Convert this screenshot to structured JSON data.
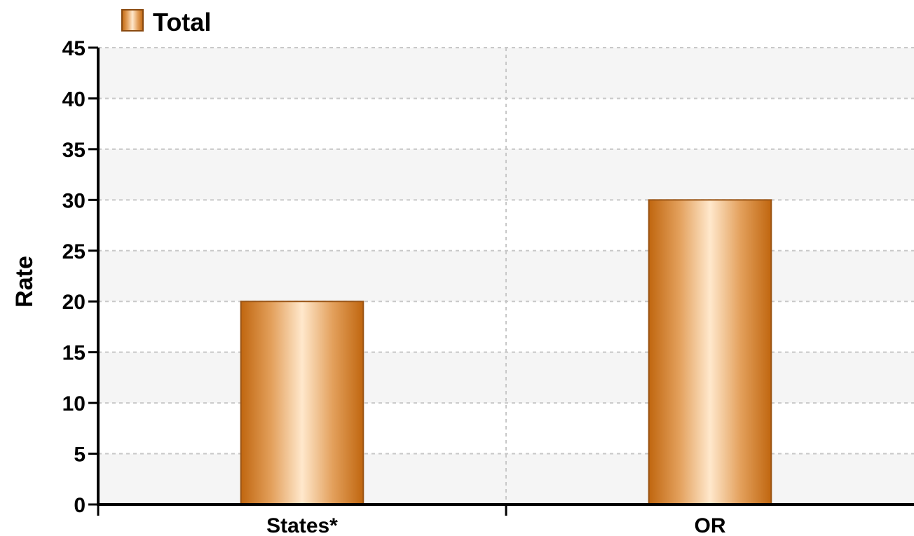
{
  "chart_data": {
    "type": "bar",
    "categories": [
      "States*",
      "OR"
    ],
    "series": [
      {
        "name": "Total",
        "values": [
          20,
          30
        ]
      }
    ],
    "xlabel": "",
    "ylabel": "Rate",
    "ylim": [
      0,
      45
    ],
    "yticks": [
      "0",
      "5",
      "10",
      "15",
      "20",
      "25",
      "30",
      "35",
      "40",
      "45"
    ],
    "grid": true,
    "legend_position": "top-left",
    "colors": {
      "bar_edge": "#b5651d",
      "bar_dark": "#c8741f",
      "bar_light": "#ffe6c8",
      "band": "#f5f5f5",
      "grid": "#c8c8c8",
      "axis": "#000000"
    }
  }
}
